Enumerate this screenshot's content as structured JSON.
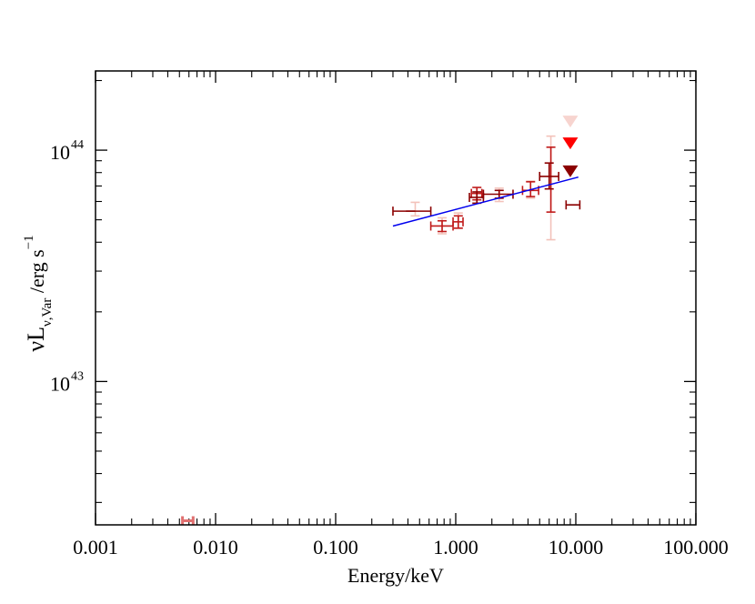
{
  "chart_data": {
    "type": "scatter",
    "title": "",
    "xlabel": "Energy/keV",
    "ylabel": {
      "main": "νL",
      "subscript": "ν,Var",
      "unit": " /erg s",
      "superscript": "−1"
    },
    "x_scale": "log",
    "y_scale": "log",
    "xlim": [
      0.001,
      100
    ],
    "ylim": [
      2.4e+42,
      2.2e+44
    ],
    "x_tick_labels": [
      {
        "value": 0.001,
        "label": "0.001"
      },
      {
        "value": 0.01,
        "label": "0.010"
      },
      {
        "value": 0.1,
        "label": "0.100"
      },
      {
        "value": 1,
        "label": "1.000"
      },
      {
        "value": 10,
        "label": "10.000"
      },
      {
        "value": 100,
        "label": "100.000"
      }
    ],
    "y_tick_labels": [
      {
        "value": 1e+43,
        "base": "10",
        "exp": "43"
      },
      {
        "value": 1e+44,
        "base": "10",
        "exp": "44"
      }
    ],
    "series": [
      {
        "name": "dark red points",
        "color": "#8b0000",
        "points": [
          {
            "x": 0.42,
            "xlo": 0.3,
            "xhi": 0.62,
            "y": 5.45e+43,
            "ylo": 5.45e+43,
            "yhi": 5.45e+43
          },
          {
            "x": 1.5,
            "xlo": 1.3,
            "xhi": 1.7,
            "y": 6.25e+43,
            "ylo": 5.9e+43,
            "yhi": 6.6e+43
          },
          {
            "x": 2.3,
            "xlo": 1.7,
            "xhi": 3.0,
            "y": 6.45e+43,
            "ylo": 6.2e+43,
            "yhi": 6.7e+43
          },
          {
            "x": 6.0,
            "xlo": 5.0,
            "xhi": 7.2,
            "y": 7.7e+43,
            "ylo": 6.8e+43,
            "yhi": 8.8e+43
          },
          {
            "x": 9.5,
            "xlo": 8.3,
            "xhi": 10.8,
            "y": 5.8e+43,
            "ylo": 5.8e+43,
            "yhi": 5.8e+43
          }
        ]
      },
      {
        "name": "red points",
        "color": "#c01a1a",
        "points": [
          {
            "x": 0.77,
            "xlo": 0.62,
            "xhi": 0.95,
            "y": 4.7e+43,
            "ylo": 4.45e+43,
            "yhi": 4.95e+43
          },
          {
            "x": 1.05,
            "xlo": 0.95,
            "xhi": 1.15,
            "y": 4.9e+43,
            "ylo": 4.6e+43,
            "yhi": 5.2e+43
          },
          {
            "x": 1.5,
            "xlo": 1.35,
            "xhi": 1.65,
            "y": 6.5e+43,
            "ylo": 6.1e+43,
            "yhi": 6.9e+43
          },
          {
            "x": 4.2,
            "xlo": 3.6,
            "xhi": 4.9,
            "y": 6.7e+43,
            "ylo": 6.3e+43,
            "yhi": 7.3e+43
          },
          {
            "x": 6.2,
            "xlo": 6.2,
            "xhi": 6.2,
            "y": 7.3e+43,
            "ylo": 5.4e+43,
            "yhi": 1.03e+44
          }
        ]
      },
      {
        "name": "light pink points",
        "color": "#f3c2ba",
        "points": [
          {
            "x": 0.46,
            "xlo": 0.46,
            "xhi": 0.46,
            "y": 5.6e+43,
            "ylo": 5.2e+43,
            "yhi": 5.95e+43
          },
          {
            "x": 0.77,
            "xlo": 0.77,
            "xhi": 0.77,
            "y": 4.75e+43,
            "ylo": 4.35e+43,
            "yhi": 5.1e+43
          },
          {
            "x": 1.05,
            "xlo": 1.05,
            "xhi": 1.05,
            "y": 5e+43,
            "ylo": 4.6e+43,
            "yhi": 5.35e+43
          },
          {
            "x": 2.3,
            "xlo": 2.3,
            "xhi": 2.3,
            "y": 6.4e+43,
            "ylo": 6e+43,
            "yhi": 6.85e+43
          },
          {
            "x": 4.2,
            "xlo": 4.2,
            "xhi": 4.2,
            "y": 6.8e+43,
            "ylo": 6.2e+43,
            "yhi": 7.35e+43
          },
          {
            "x": 6.2,
            "xlo": 6.2,
            "xhi": 6.2,
            "y": 7.6e+43,
            "ylo": 4.1e+43,
            "yhi": 1.15e+44
          }
        ]
      },
      {
        "name": "optical/UV point",
        "color": "#e07070",
        "points": [
          {
            "x": 0.0059,
            "xlo": 0.0053,
            "xhi": 0.0065,
            "y": 2.5e+42,
            "ylo": 2.5e+42,
            "yhi": 2.5e+42
          }
        ]
      }
    ],
    "upper_limits": [
      {
        "name": "light pink upper limit",
        "color": "#f7d4cf",
        "x": 9.0,
        "y": 1.33e+44
      },
      {
        "name": "red upper limit",
        "color": "#ff0000",
        "x": 9.0,
        "y": 1.07e+44
      },
      {
        "name": "dark red upper limit",
        "color": "#8b0000",
        "x": 9.0,
        "y": 8.1e+43
      }
    ],
    "fit_line": {
      "name": "power-law fit",
      "color": "#0000ee",
      "points": [
        [
          0.3,
          4.7e+43
        ],
        [
          10.5,
          7.65e+43
        ]
      ]
    }
  }
}
